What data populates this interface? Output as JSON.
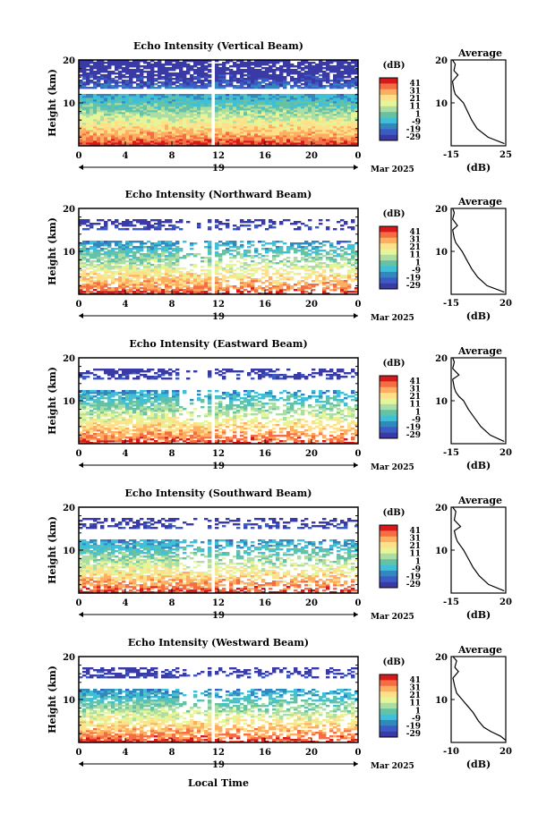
{
  "figure": {
    "date_label": "Mar 2025",
    "xlabel": "Local Time",
    "ylabel": "Height (km)",
    "cbar_unit": "(dB)",
    "cbar_ticks": [
      "41",
      "31",
      "21",
      "11",
      "1",
      "-9",
      "-19",
      "-29"
    ],
    "cbar_colors": [
      "#d7191c",
      "#f46d43",
      "#fdae61",
      "#fee08b",
      "#e6f598",
      "#abdda4",
      "#66c2a5",
      "#3fbfd8",
      "#3288bd",
      "#3b5cc4",
      "#3a3aa6"
    ],
    "day_label": "19",
    "time_ticks": [
      "0",
      "4",
      "8",
      "12",
      "16",
      "20",
      "0"
    ],
    "height_ticks": [
      "20",
      "10"
    ],
    "avg_title": "Average",
    "avg_xlabel": "(dB)"
  },
  "panels": [
    {
      "title": "Echo Intensity (Vertical Beam)",
      "avg_xticks": [
        "-15",
        "25"
      ]
    },
    {
      "title": "Echo Intensity (Northward Beam)",
      "avg_xticks": [
        "-15",
        "20"
      ]
    },
    {
      "title": "Echo Intensity (Eastward Beam)",
      "avg_xticks": [
        "-15",
        "20"
      ]
    },
    {
      "title": "Echo Intensity (Southward Beam)",
      "avg_xticks": [
        "-15",
        "20"
      ]
    },
    {
      "title": "Echo Intensity (Westward Beam)",
      "avg_xticks": [
        "-10",
        "20"
      ]
    }
  ],
  "chart_data": [
    {
      "type": "heatmap",
      "title": "Echo Intensity (Vertical Beam)",
      "xlabel": "Local Time",
      "ylabel": "Height (km)",
      "xlim": [
        0,
        24
      ],
      "ylim": [
        0,
        20
      ],
      "zlim": [
        -29,
        41
      ],
      "colorbar_label": "(dB)",
      "average_profile": {
        "type": "line",
        "title": "Average",
        "xlabel": "(dB)",
        "xlim": [
          -15,
          25
        ],
        "ylim": [
          0,
          20
        ],
        "x": [
          24,
          12,
          4,
          0,
          -3,
          -6,
          -9,
          -12,
          -13,
          -14,
          -10,
          -13,
          -12,
          -14
        ],
        "y": [
          0.5,
          2,
          4,
          6,
          8,
          10,
          11,
          12,
          13,
          15,
          16.5,
          17.5,
          19,
          20
        ]
      }
    },
    {
      "type": "heatmap",
      "title": "Echo Intensity (Northward Beam)",
      "xlabel": "Local Time",
      "ylabel": "Height (km)",
      "xlim": [
        0,
        24
      ],
      "ylim": [
        0,
        20
      ],
      "zlim": [
        -29,
        41
      ],
      "colorbar_label": "(dB)",
      "average_profile": {
        "type": "line",
        "title": "Average",
        "xlabel": "(dB)",
        "xlim": [
          -15,
          20
        ],
        "ylim": [
          0,
          20
        ],
        "x": [
          19,
          8,
          2,
          -2,
          -5,
          -8,
          -10,
          -12,
          -13,
          -14,
          -11,
          -14,
          -13,
          -14
        ],
        "y": [
          0.5,
          2,
          4,
          6,
          8,
          10,
          11,
          12,
          13,
          15,
          16,
          17.5,
          19,
          20
        ]
      }
    },
    {
      "type": "heatmap",
      "title": "Echo Intensity (Eastward Beam)",
      "xlabel": "Local Time",
      "ylabel": "Height (km)",
      "xlim": [
        0,
        24
      ],
      "ylim": [
        0,
        20
      ],
      "zlim": [
        -29,
        41
      ],
      "colorbar_label": "(dB)",
      "average_profile": {
        "type": "line",
        "title": "Average",
        "xlabel": "(dB)",
        "xlim": [
          -15,
          20
        ],
        "ylim": [
          0,
          20
        ],
        "x": [
          19,
          10,
          4,
          0,
          -4,
          -7,
          -10,
          -12,
          -13,
          -14,
          -10,
          -14,
          -13,
          -14
        ],
        "y": [
          0.5,
          2,
          4,
          6,
          8,
          10,
          11,
          12,
          13,
          15,
          16,
          17.5,
          19,
          20
        ]
      }
    },
    {
      "type": "heatmap",
      "title": "Echo Intensity (Southward Beam)",
      "xlabel": "Local Time",
      "ylabel": "Height (km)",
      "xlim": [
        0,
        24
      ],
      "ylim": [
        0,
        20
      ],
      "zlim": [
        -29,
        41
      ],
      "colorbar_label": "(dB)",
      "average_profile": {
        "type": "line",
        "title": "Average",
        "xlabel": "(dB)",
        "xlim": [
          -15,
          20
        ],
        "ylim": [
          0,
          20
        ],
        "x": [
          19,
          9,
          3,
          -1,
          -4,
          -7,
          -9,
          -11,
          -12,
          -13,
          -9,
          -13,
          -12,
          -14
        ],
        "y": [
          0.5,
          2,
          4,
          6,
          8,
          10,
          11,
          12,
          13,
          14.5,
          15.5,
          17,
          19,
          20
        ]
      }
    },
    {
      "type": "heatmap",
      "title": "Echo Intensity (Westward Beam)",
      "xlabel": "Local Time",
      "ylabel": "Height (km)",
      "xlim": [
        0,
        24
      ],
      "ylim": [
        0,
        20
      ],
      "zlim": [
        -29,
        41
      ],
      "colorbar_label": "(dB)",
      "average_profile": {
        "type": "line",
        "title": "Average",
        "xlabel": "(dB)",
        "xlim": [
          -10,
          20
        ],
        "ylim": [
          0,
          20
        ],
        "x": [
          20,
          17,
          12,
          8,
          5,
          2,
          -1,
          -3,
          -5,
          -7,
          -8,
          -9,
          -6,
          -8,
          -7,
          -9
        ],
        "y": [
          0.5,
          1.5,
          2.5,
          3.5,
          5,
          7,
          8.5,
          9.5,
          10.5,
          11.5,
          13,
          15,
          16.5,
          17.5,
          19,
          20
        ]
      }
    }
  ]
}
